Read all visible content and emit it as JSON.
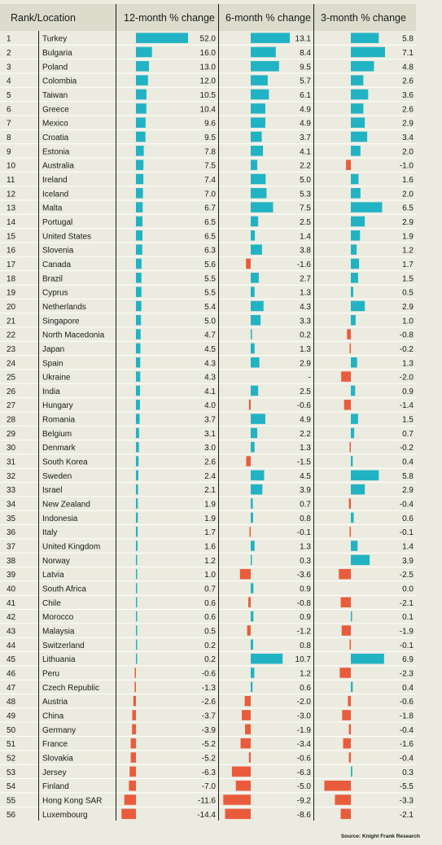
{
  "chart_data": {
    "type": "table",
    "headers": {
      "rank_location": "Rank/Location",
      "m12": "12-month % change",
      "m6": "6-month % change",
      "m3": "3-month % change"
    },
    "rows": [
      {
        "rank": "1",
        "location": "Turkey",
        "m12": 52.0,
        "m12_label": "52.0",
        "m6": 13.1,
        "m6_label": "13.1",
        "m3": 5.8,
        "m3_label": "5.8"
      },
      {
        "rank": "2",
        "location": "Bulgaria",
        "m12": 16.0,
        "m12_label": "16.0",
        "m6": 8.4,
        "m6_label": "8.4",
        "m3": 7.1,
        "m3_label": "7.1"
      },
      {
        "rank": "3",
        "location": "Poland",
        "m12": 13.0,
        "m12_label": "13.0",
        "m6": 9.5,
        "m6_label": "9.5",
        "m3": 4.8,
        "m3_label": "4.8"
      },
      {
        "rank": "4",
        "location": "Colombia",
        "m12": 12.0,
        "m12_label": "12.0",
        "m6": 5.7,
        "m6_label": "5.7",
        "m3": 2.6,
        "m3_label": "2.6"
      },
      {
        "rank": "5",
        "location": "Taiwan",
        "m12": 10.5,
        "m12_label": "10.5",
        "m6": 6.1,
        "m6_label": "6.1",
        "m3": 3.6,
        "m3_label": "3.6"
      },
      {
        "rank": "6",
        "location": "Greece",
        "m12": 10.4,
        "m12_label": "10.4",
        "m6": 4.9,
        "m6_label": "4.9",
        "m3": 2.6,
        "m3_label": "2.6"
      },
      {
        "rank": "7",
        "location": "Mexico",
        "m12": 9.6,
        "m12_label": "9.6",
        "m6": 4.9,
        "m6_label": "4.9",
        "m3": 2.9,
        "m3_label": "2.9"
      },
      {
        "rank": "8",
        "location": "Croatia",
        "m12": 9.5,
        "m12_label": "9.5",
        "m6": 3.7,
        "m6_label": "3.7",
        "m3": 3.4,
        "m3_label": "3.4"
      },
      {
        "rank": "9",
        "location": "Estonia",
        "m12": 7.8,
        "m12_label": "7.8",
        "m6": 4.1,
        "m6_label": "4.1",
        "m3": 2.0,
        "m3_label": "2.0"
      },
      {
        "rank": "10",
        "location": "Australia",
        "m12": 7.5,
        "m12_label": "7.5",
        "m6": 2.2,
        "m6_label": "2.2",
        "m3": -1.0,
        "m3_label": "-1.0"
      },
      {
        "rank": "11",
        "location": "Ireland",
        "m12": 7.4,
        "m12_label": "7.4",
        "m6": 5.0,
        "m6_label": "5.0",
        "m3": 1.6,
        "m3_label": "1.6"
      },
      {
        "rank": "12",
        "location": "Iceland",
        "m12": 7.0,
        "m12_label": "7.0",
        "m6": 5.3,
        "m6_label": "5.3",
        "m3": 2.0,
        "m3_label": "2.0"
      },
      {
        "rank": "13",
        "location": "Malta",
        "m12": 6.7,
        "m12_label": "6.7",
        "m6": 7.5,
        "m6_label": "7.5",
        "m3": 6.5,
        "m3_label": "6.5"
      },
      {
        "rank": "14",
        "location": "Portugal",
        "m12": 6.5,
        "m12_label": "6.5",
        "m6": 2.5,
        "m6_label": "2.5",
        "m3": 2.9,
        "m3_label": "2.9"
      },
      {
        "rank": "15",
        "location": "United States",
        "m12": 6.5,
        "m12_label": "6.5",
        "m6": 1.4,
        "m6_label": "1.4",
        "m3": 1.9,
        "m3_label": "1.9"
      },
      {
        "rank": "16",
        "location": "Slovenia",
        "m12": 6.3,
        "m12_label": "6.3",
        "m6": 3.8,
        "m6_label": "3.8",
        "m3": 1.2,
        "m3_label": "1.2"
      },
      {
        "rank": "17",
        "location": "Canada",
        "m12": 5.6,
        "m12_label": "5.6",
        "m6": -1.6,
        "m6_label": "-1.6",
        "m3": 1.7,
        "m3_label": "1.7"
      },
      {
        "rank": "18",
        "location": "Brazil",
        "m12": 5.5,
        "m12_label": "5.5",
        "m6": 2.7,
        "m6_label": "2.7",
        "m3": 1.5,
        "m3_label": "1.5"
      },
      {
        "rank": "19",
        "location": "Cyprus",
        "m12": 5.5,
        "m12_label": "5.5",
        "m6": 1.3,
        "m6_label": "1.3",
        "m3": 0.5,
        "m3_label": "0.5"
      },
      {
        "rank": "20",
        "location": "Netherlands",
        "m12": 5.4,
        "m12_label": "5.4",
        "m6": 4.3,
        "m6_label": "4.3",
        "m3": 2.9,
        "m3_label": "2.9"
      },
      {
        "rank": "21",
        "location": "Singapore",
        "m12": 5.0,
        "m12_label": "5.0",
        "m6": 3.3,
        "m6_label": "3.3",
        "m3": 1.0,
        "m3_label": "1.0"
      },
      {
        "rank": "22",
        "location": "North Macedonia",
        "m12": 4.7,
        "m12_label": "4.7",
        "m6": 0.2,
        "m6_label": "0.2",
        "m3": -0.8,
        "m3_label": "-0.8"
      },
      {
        "rank": "23",
        "location": "Japan",
        "m12": 4.5,
        "m12_label": "4.5",
        "m6": 1.3,
        "m6_label": "1.3",
        "m3": -0.2,
        "m3_label": "-0.2"
      },
      {
        "rank": "24",
        "location": "Spain",
        "m12": 4.3,
        "m12_label": "4.3",
        "m6": 2.9,
        "m6_label": "2.9",
        "m3": 1.3,
        "m3_label": "1.3"
      },
      {
        "rank": "25",
        "location": "Ukraine",
        "m12": 4.3,
        "m12_label": "4.3",
        "m6": null,
        "m6_label": "-",
        "m3": -2.0,
        "m3_label": "-2.0"
      },
      {
        "rank": "26",
        "location": "India",
        "m12": 4.1,
        "m12_label": "4.1",
        "m6": 2.5,
        "m6_label": "2.5",
        "m3": 0.9,
        "m3_label": "0.9"
      },
      {
        "rank": "27",
        "location": "Hungary",
        "m12": 4.0,
        "m12_label": "4.0",
        "m6": -0.6,
        "m6_label": "-0.6",
        "m3": -1.4,
        "m3_label": "-1.4"
      },
      {
        "rank": "28",
        "location": "Romania",
        "m12": 3.7,
        "m12_label": "3.7",
        "m6": 4.9,
        "m6_label": "4.9",
        "m3": 1.5,
        "m3_label": "1.5"
      },
      {
        "rank": "29",
        "location": "Belgium",
        "m12": 3.1,
        "m12_label": "3.1",
        "m6": 2.2,
        "m6_label": "2.2",
        "m3": 0.7,
        "m3_label": "0.7"
      },
      {
        "rank": "30",
        "location": "Denmark",
        "m12": 3.0,
        "m12_label": "3.0",
        "m6": 1.3,
        "m6_label": "1.3",
        "m3": -0.2,
        "m3_label": "-0.2"
      },
      {
        "rank": "31",
        "location": "South Korea",
        "m12": 2.6,
        "m12_label": "2.6",
        "m6": -1.5,
        "m6_label": "-1.5",
        "m3": 0.4,
        "m3_label": "0.4"
      },
      {
        "rank": "32",
        "location": "Sweden",
        "m12": 2.4,
        "m12_label": "2.4",
        "m6": 4.5,
        "m6_label": "4.5",
        "m3": 5.8,
        "m3_label": "5.8"
      },
      {
        "rank": "33",
        "location": "Israel",
        "m12": 2.1,
        "m12_label": "2.1",
        "m6": 3.9,
        "m6_label": "3.9",
        "m3": 2.9,
        "m3_label": "2.9"
      },
      {
        "rank": "34",
        "location": "New Zealand",
        "m12": 1.9,
        "m12_label": "1.9",
        "m6": 0.7,
        "m6_label": "0.7",
        "m3": -0.4,
        "m3_label": "-0.4"
      },
      {
        "rank": "35",
        "location": "Indonesia",
        "m12": 1.9,
        "m12_label": "1.9",
        "m6": 0.8,
        "m6_label": "0.8",
        "m3": 0.6,
        "m3_label": "0.6"
      },
      {
        "rank": "36",
        "location": "Italy",
        "m12": 1.7,
        "m12_label": "1.7",
        "m6": -0.1,
        "m6_label": "-0.1",
        "m3": -0.1,
        "m3_label": "-0.1"
      },
      {
        "rank": "37",
        "location": "United Kingdom",
        "m12": 1.6,
        "m12_label": "1.6",
        "m6": 1.3,
        "m6_label": "1.3",
        "m3": 1.4,
        "m3_label": "1.4"
      },
      {
        "rank": "38",
        "location": "Norway",
        "m12": 1.2,
        "m12_label": "1.2",
        "m6": 0.3,
        "m6_label": "0.3",
        "m3": 3.9,
        "m3_label": "3.9"
      },
      {
        "rank": "39",
        "location": "Latvia",
        "m12": 1.0,
        "m12_label": "1.0",
        "m6": -3.6,
        "m6_label": "-3.6",
        "m3": -2.5,
        "m3_label": "-2.5"
      },
      {
        "rank": "40",
        "location": "South Africa",
        "m12": 0.7,
        "m12_label": "0.7",
        "m6": 0.9,
        "m6_label": "0.9",
        "m3": 0.0,
        "m3_label": "0.0"
      },
      {
        "rank": "41",
        "location": "Chile",
        "m12": 0.6,
        "m12_label": "0.6",
        "m6": -0.8,
        "m6_label": "-0.8",
        "m3": -2.1,
        "m3_label": "-2.1"
      },
      {
        "rank": "42",
        "location": "Morocco",
        "m12": 0.6,
        "m12_label": "0.6",
        "m6": 0.9,
        "m6_label": "0.9",
        "m3": 0.1,
        "m3_label": "0.1"
      },
      {
        "rank": "43",
        "location": "Malaysia",
        "m12": 0.5,
        "m12_label": "0.5",
        "m6": -1.2,
        "m6_label": "-1.2",
        "m3": -1.9,
        "m3_label": "-1.9"
      },
      {
        "rank": "44",
        "location": "Switzerland",
        "m12": 0.2,
        "m12_label": "0.2",
        "m6": 0.8,
        "m6_label": "0.8",
        "m3": -0.1,
        "m3_label": "-0.1"
      },
      {
        "rank": "45",
        "location": "Lithuania",
        "m12": 0.2,
        "m12_label": "0.2",
        "m6": 10.7,
        "m6_label": "10.7",
        "m3": 6.9,
        "m3_label": "6.9"
      },
      {
        "rank": "46",
        "location": "Peru",
        "m12": -0.6,
        "m12_label": "-0.6",
        "m6": 1.2,
        "m6_label": "1.2",
        "m3": -2.3,
        "m3_label": "-2.3"
      },
      {
        "rank": "47",
        "location": "Czech Republic",
        "m12": -1.3,
        "m12_label": "-1.3",
        "m6": 0.6,
        "m6_label": "0.6",
        "m3": 0.4,
        "m3_label": "0.4"
      },
      {
        "rank": "48",
        "location": "Austria",
        "m12": -2.6,
        "m12_label": "-2.6",
        "m6": -2.0,
        "m6_label": "-2.0",
        "m3": -0.6,
        "m3_label": "-0.6"
      },
      {
        "rank": "49",
        "location": "China",
        "m12": -3.7,
        "m12_label": "-3.7",
        "m6": -3.0,
        "m6_label": "-3.0",
        "m3": -1.8,
        "m3_label": "-1.8"
      },
      {
        "rank": "50",
        "location": "Germany",
        "m12": -3.9,
        "m12_label": "-3.9",
        "m6": -1.9,
        "m6_label": "-1.9",
        "m3": -0.4,
        "m3_label": "-0.4"
      },
      {
        "rank": "51",
        "location": "France",
        "m12": -5.2,
        "m12_label": "-5.2",
        "m6": -3.4,
        "m6_label": "-3.4",
        "m3": -1.6,
        "m3_label": "-1.6"
      },
      {
        "rank": "52",
        "location": "Slovakia",
        "m12": -5.2,
        "m12_label": "-5.2",
        "m6": -0.6,
        "m6_label": "-0.6",
        "m3": -0.4,
        "m3_label": "-0.4"
      },
      {
        "rank": "53",
        "location": "Jersey",
        "m12": -6.3,
        "m12_label": "-6.3",
        "m6": -6.3,
        "m6_label": "-6.3",
        "m3": 0.3,
        "m3_label": "0.3"
      },
      {
        "rank": "54",
        "location": "Finland",
        "m12": -7.0,
        "m12_label": "-7.0",
        "m6": -5.0,
        "m6_label": "-5.0",
        "m3": -5.5,
        "m3_label": "-5.5"
      },
      {
        "rank": "55",
        "location": "Hong Kong SAR",
        "m12": -11.6,
        "m12_label": "-11.6",
        "m6": -9.2,
        "m6_label": "-9.2",
        "m3": -3.3,
        "m3_label": "-3.3"
      },
      {
        "rank": "56",
        "location": "Luxembourg",
        "m12": -14.4,
        "m12_label": "-14.4",
        "m6": -8.6,
        "m6_label": "-8.6",
        "m3": -2.1,
        "m3_label": "-2.1"
      }
    ],
    "source": "Source: Knight Frank Research"
  },
  "colors": {
    "positive": "#21b3c4",
    "negative": "#ea5b3c",
    "background": "#ebebdf",
    "header_band": "#dcdccd",
    "row_divider": "#ffffff",
    "column_rule": "#1a1a1a",
    "text": "#1a1a1a"
  }
}
